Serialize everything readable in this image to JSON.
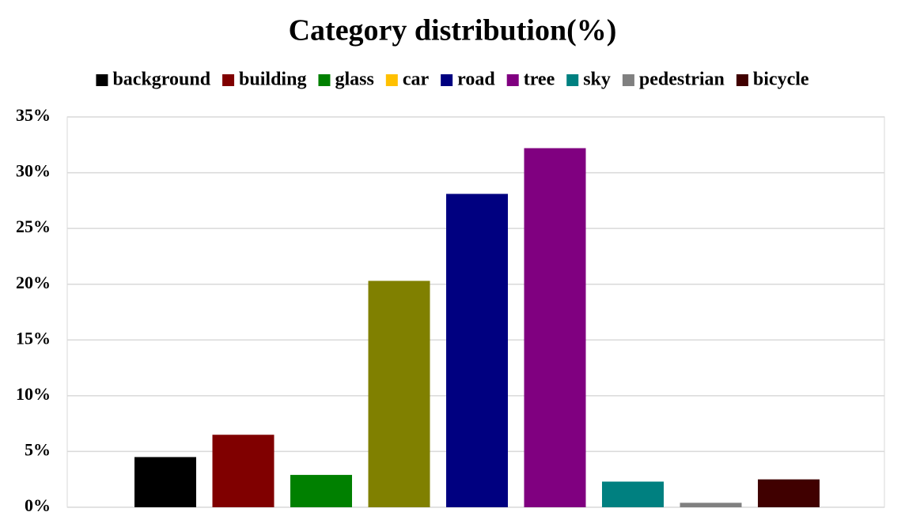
{
  "chart_data": {
    "type": "bar",
    "title": "Category distribution(%)",
    "series": [
      {
        "name": "background",
        "color": "#000000",
        "values": [
          4.5
        ]
      },
      {
        "name": "building",
        "color": "#800000",
        "values": [
          6.5
        ]
      },
      {
        "name": "glass",
        "color": "#008000",
        "values": [
          2.9
        ]
      },
      {
        "name": "car",
        "color": "#808000",
        "legend_color": "#ffc000",
        "values": [
          20.3
        ]
      },
      {
        "name": "road",
        "color": "#000080",
        "values": [
          28.1
        ]
      },
      {
        "name": "tree",
        "color": "#800080",
        "values": [
          32.2
        ]
      },
      {
        "name": "sky",
        "color": "#008080",
        "values": [
          2.3
        ]
      },
      {
        "name": "pedestrian",
        "color": "#808080",
        "values": [
          0.4
        ]
      },
      {
        "name": "bicycle",
        "color": "#400000",
        "values": [
          2.5
        ]
      }
    ],
    "ylim": [
      0,
      35
    ],
    "yticks": [
      {
        "value": 0,
        "label": "0%"
      },
      {
        "value": 5,
        "label": "5%"
      },
      {
        "value": 10,
        "label": "10%"
      },
      {
        "value": 15,
        "label": "15%"
      },
      {
        "value": 20,
        "label": "20%"
      },
      {
        "value": 25,
        "label": "25%"
      },
      {
        "value": 30,
        "label": "30%"
      },
      {
        "value": 35,
        "label": "35%"
      }
    ],
    "grid": true,
    "legend": "top"
  }
}
